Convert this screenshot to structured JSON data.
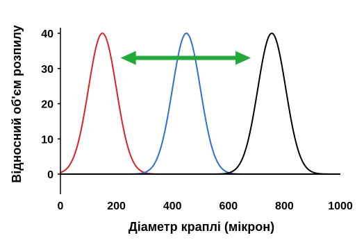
{
  "chart_data": {
    "type": "line",
    "title": "",
    "xlabel": "Діаметр краплі (мікрон)",
    "ylabel": "Відносний об'єм розпилу",
    "xlim": [
      0,
      1000
    ],
    "ylim": [
      0,
      45
    ],
    "xticks": [
      "0",
      "200",
      "400",
      "600",
      "800",
      "1000"
    ],
    "yticks": [
      "0",
      "10",
      "20",
      "30",
      "40"
    ],
    "grid": false,
    "legend": "none",
    "series": [
      {
        "color": "#e02020",
        "peak_x": 150,
        "peak_y": 40,
        "sigma": 50
      },
      {
        "color": "#2a6fdb",
        "peak_x": 450,
        "peak_y": 40,
        "sigma": 50
      },
      {
        "color": "#000000",
        "peak_x": 755,
        "peak_y": 40,
        "sigma": 50
      }
    ],
    "annotations": [
      {
        "type": "double-arrow",
        "color": "#1faa3a",
        "x_start": 215,
        "x_end": 680,
        "y": 33
      }
    ]
  }
}
